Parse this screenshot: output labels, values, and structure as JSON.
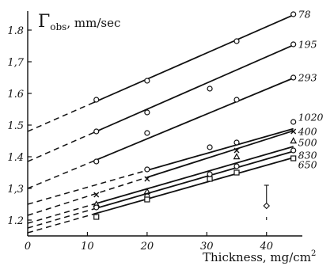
{
  "chart_data": {
    "type": "line",
    "title": "",
    "ylabel_symbol": "Γ",
    "ylabel_sub": "obs",
    "ylabel_unit": ", mm/sec",
    "xlabel_text": "Thickness, mg/cm",
    "xlabel_sup": "2",
    "xlim": [
      0,
      46
    ],
    "ylim": [
      1.15,
      1.86
    ],
    "x_ticks": [
      0,
      10,
      20,
      30,
      40
    ],
    "y_ticks": [
      1.2,
      1.3,
      1.4,
      1.5,
      1.6,
      1.7,
      1.8
    ],
    "x_tick_labels": [
      "0",
      "10",
      "20",
      "30",
      "40"
    ],
    "y_tick_labels": [
      "1.2",
      "1,3",
      "1.4",
      "1.5",
      "1.6",
      "1,7",
      "1.8"
    ],
    "series": [
      {
        "name": "78",
        "marker": "circle",
        "intercept": 1.48,
        "slope": 0.00826,
        "solid_from": 11,
        "points": [
          [
            11.5,
            1.58
          ],
          [
            20,
            1.64
          ],
          [
            35,
            1.765
          ],
          [
            44.5,
            1.85
          ]
        ]
      },
      {
        "name": "195",
        "marker": "circle",
        "intercept": 1.385,
        "slope": 0.00826,
        "solid_from": 11,
        "points": [
          [
            11.5,
            1.48
          ],
          [
            20,
            1.54
          ],
          [
            30.5,
            1.615
          ],
          [
            44.5,
            1.755
          ]
        ]
      },
      {
        "name": "293",
        "marker": "circle",
        "intercept": 1.3,
        "slope": 0.00783,
        "solid_from": 11,
        "points": [
          [
            11.5,
            1.385
          ],
          [
            20,
            1.475
          ],
          [
            35,
            1.58
          ],
          [
            44.5,
            1.65
          ]
        ]
      },
      {
        "name": "1020",
        "marker": "circle",
        "intercept": 1.25,
        "slope": 0.00536,
        "solid_from": 20,
        "points": [
          [
            20,
            1.36
          ],
          [
            30.5,
            1.43
          ],
          [
            35,
            1.445
          ],
          [
            44.5,
            1.51
          ]
        ]
      },
      {
        "name": "400",
        "marker": "cross",
        "intercept": 1.215,
        "slope": 0.006,
        "solid_from": 20,
        "points": [
          [
            11.5,
            1.28
          ],
          [
            20,
            1.33
          ],
          [
            35,
            1.42
          ],
          [
            44.5,
            1.48
          ]
        ]
      },
      {
        "name": "500",
        "marker": "triangle",
        "intercept": 1.19,
        "slope": 0.00544,
        "solid_from": 11,
        "points": [
          [
            11.5,
            1.25
          ],
          [
            20,
            1.29
          ],
          [
            35,
            1.4
          ],
          [
            44.5,
            1.45
          ]
        ]
      },
      {
        "name": "830",
        "marker": "circle",
        "intercept": 1.175,
        "slope": 0.00544,
        "solid_from": 11,
        "points": [
          [
            11.5,
            1.24
          ],
          [
            20,
            1.275
          ],
          [
            30.5,
            1.345
          ],
          [
            35,
            1.37
          ],
          [
            44.5,
            1.42
          ]
        ]
      },
      {
        "name": "650",
        "marker": "square",
        "intercept": 1.16,
        "slope": 0.00533,
        "solid_from": 11,
        "points": [
          [
            11.5,
            1.21
          ],
          [
            20,
            1.265
          ],
          [
            30.5,
            1.33
          ],
          [
            35,
            1.35
          ],
          [
            44.5,
            1.395
          ]
        ]
      }
    ],
    "series_label_positions": {
      "78": 1.85,
      "195": 1.755,
      "293": 1.65,
      "1020": 1.525,
      "400": 1.48,
      "500": 1.445,
      "830": 1.405,
      "650": 1.375
    },
    "error_bar": {
      "x": 40,
      "y": 1.245,
      "low": 1.21,
      "high": 1.31
    }
  }
}
